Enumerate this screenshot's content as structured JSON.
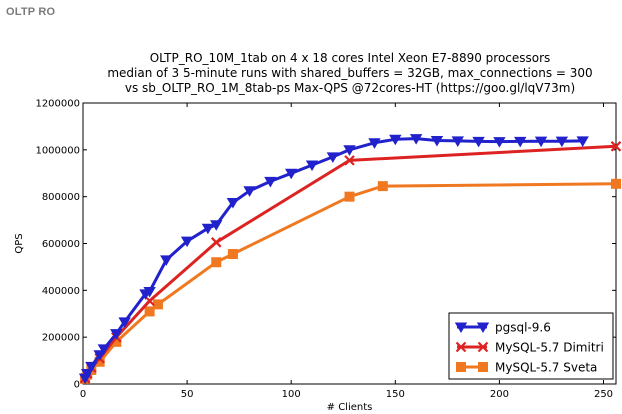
{
  "header": {
    "label": "OLTP RO"
  },
  "chart_data": {
    "type": "line",
    "title_lines": [
      "OLTP_RO_10M_1tab on 4 x 18 cores Intel Xeon E7-8890 processors",
      "median of 3 5-minute runs with shared_buffers = 32GB, max_connections = 300",
      "vs sb_OLTP_RO_1M_8tab-ps Max-QPS @72cores-HT (https://goo.gl/lqV73m)"
    ],
    "xlabel": "# Clients",
    "ylabel": "QPS",
    "xlim": [
      0,
      256
    ],
    "ylim": [
      0,
      1200000
    ],
    "xticks": [
      0,
      50,
      100,
      150,
      200,
      250
    ],
    "yticks": [
      0,
      200000,
      400000,
      600000,
      800000,
      1000000,
      1200000
    ],
    "legend_position": "bottom-right",
    "series": [
      {
        "name": "pgsql-9.6",
        "color": "#2222cc",
        "marker": "triangle-down",
        "x": [
          1,
          2,
          4,
          8,
          10,
          16,
          20,
          30,
          32,
          40,
          50,
          60,
          64,
          72,
          80,
          90,
          100,
          110,
          120,
          128,
          140,
          150,
          160,
          170,
          180,
          190,
          200,
          210,
          220,
          230,
          240
        ],
        "y": [
          25000,
          45000,
          75000,
          125000,
          150000,
          215000,
          265000,
          385000,
          395000,
          530000,
          610000,
          665000,
          680000,
          775000,
          825000,
          865000,
          900000,
          935000,
          970000,
          1000000,
          1030000,
          1045000,
          1048000,
          1040000,
          1038000,
          1036000,
          1035000,
          1036000,
          1037000,
          1037000,
          1038000
        ]
      },
      {
        "name": "MySQL-5.7 Dimitri",
        "color": "#dd2222",
        "marker": "x",
        "x": [
          1,
          2,
          4,
          8,
          16,
          32,
          64,
          128,
          256
        ],
        "y": [
          25000,
          45000,
          70000,
          110000,
          200000,
          355000,
          605000,
          955000,
          1015000
        ]
      },
      {
        "name": "MySQL-5.7 Sveta",
        "color": "#f07820",
        "marker": "square",
        "x": [
          1,
          2,
          4,
          8,
          16,
          32,
          36,
          64,
          72,
          128,
          144,
          256
        ],
        "y": [
          22000,
          40000,
          60000,
          95000,
          180000,
          310000,
          340000,
          520000,
          555000,
          800000,
          845000,
          855000
        ]
      }
    ]
  }
}
